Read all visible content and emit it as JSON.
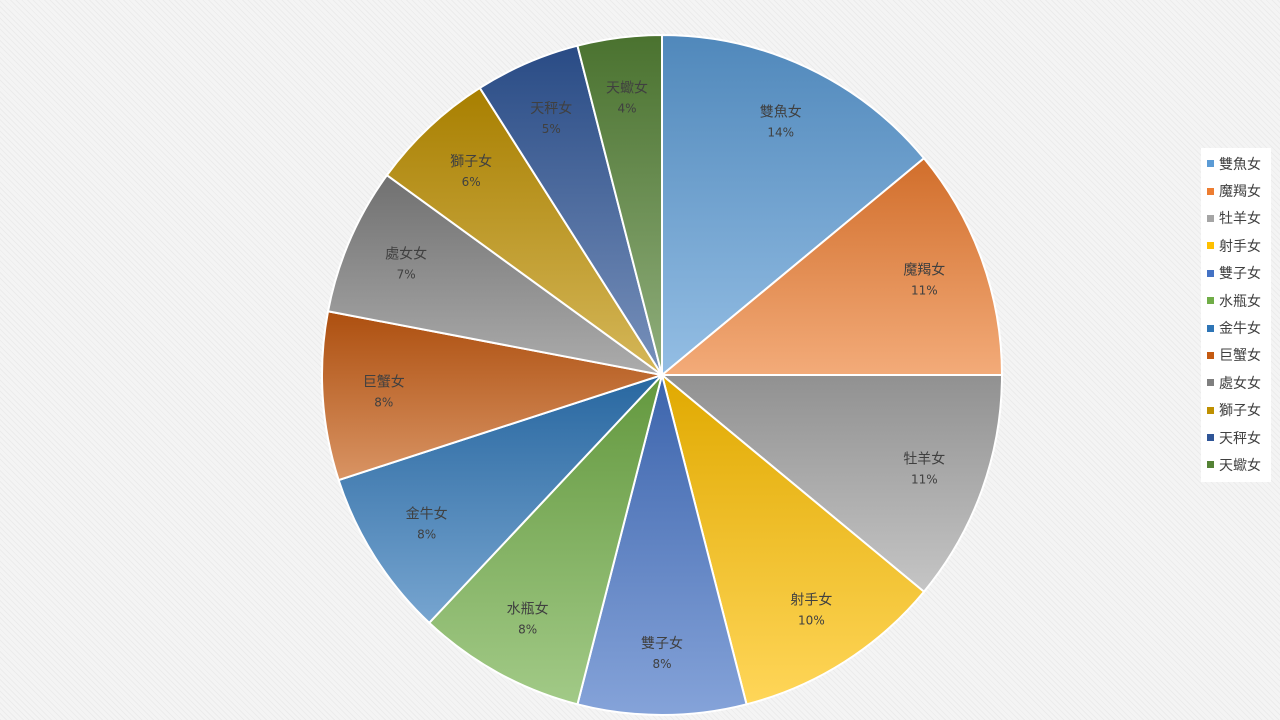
{
  "chart_data": {
    "type": "pie",
    "categories": [
      "雙魚女",
      "魔羯女",
      "牡羊女",
      "射手女",
      "雙子女",
      "水瓶女",
      "金牛女",
      "巨蟹女",
      "處女女",
      "獅子女",
      "天秤女",
      "天蠍女"
    ],
    "values": [
      14,
      11,
      11,
      10,
      8,
      8,
      8,
      8,
      7,
      6,
      5,
      4
    ],
    "value_labels": [
      "14%",
      "11%",
      "11%",
      "10%",
      "8%",
      "8%",
      "8%",
      "8%",
      "7%",
      "6%",
      "5%",
      "4%"
    ],
    "colors": [
      "#5b9bd5",
      "#ed7d31",
      "#a5a5a5",
      "#ffc000",
      "#4472c4",
      "#70ad47",
      "#2e75b6",
      "#c55a11",
      "#7f7f7f",
      "#bf9000",
      "#2f5597",
      "#548235"
    ],
    "start_angle": "12 o'clock",
    "direction": "clockwise",
    "legend_position": "right",
    "slice_labels": "category name and percentage inside slices"
  }
}
